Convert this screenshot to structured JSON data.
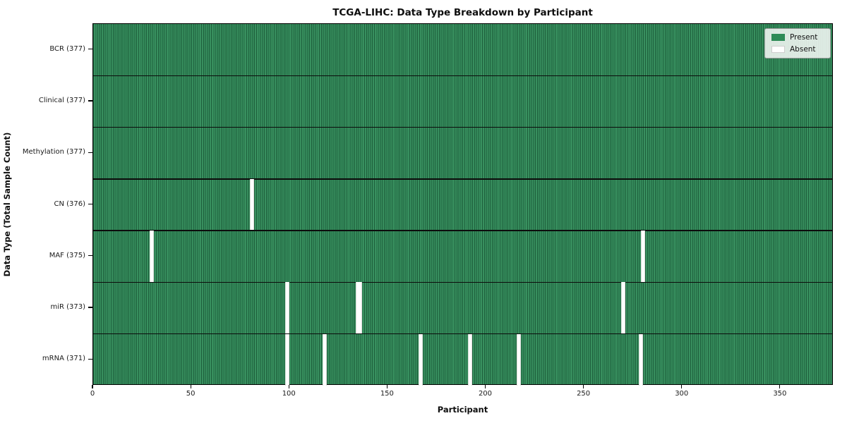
{
  "chart_data": {
    "type": "heatmap",
    "title": "TCGA-LIHC: Data Type Breakdown by Participant",
    "xlabel": "Participant",
    "ylabel": "Data Type (Total Sample Count)",
    "n_participants": 377,
    "x_ticks": [
      0,
      50,
      100,
      150,
      200,
      250,
      300,
      350
    ],
    "xlim": [
      0,
      377
    ],
    "grid": false,
    "legend_position": "upper right",
    "legend": [
      {
        "label": "Present",
        "color": "#2e8b57"
      },
      {
        "label": "Absent",
        "color": "#ffffff"
      }
    ],
    "colors": {
      "present_fill": "#2e8b57",
      "present_stripe_light": "#38905f",
      "present_stripe_dark": "#1d5e3b",
      "absent_fill": "#ffffff",
      "row_divider": "#0c0c0c",
      "plot_border": "#000000"
    },
    "rows": [
      {
        "label": "BCR (377)",
        "name": "BCR",
        "total": 377,
        "absent_participants": []
      },
      {
        "label": "Clinical (377)",
        "name": "Clinical",
        "total": 377,
        "absent_participants": []
      },
      {
        "label": "Methylation (377)",
        "name": "Methylation",
        "total": 377,
        "absent_participants": []
      },
      {
        "label": "CN (376)",
        "name": "CN",
        "total": 376,
        "absent_participants": [
          80
        ]
      },
      {
        "label": "MAF (375)",
        "name": "MAF",
        "total": 375,
        "absent_participants": [
          29,
          279
        ]
      },
      {
        "label": "miR (373)",
        "name": "miR",
        "total": 373,
        "absent_participants": [
          98,
          134,
          135,
          269
        ]
      },
      {
        "label": "mRNA (371)",
        "name": "mRNA",
        "total": 371,
        "absent_participants": [
          98,
          117,
          166,
          191,
          216,
          278
        ]
      }
    ]
  }
}
